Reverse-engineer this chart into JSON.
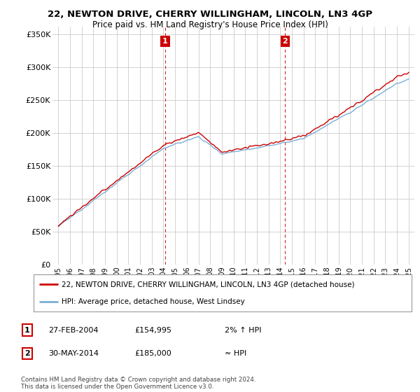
{
  "title_line1": "22, NEWTON DRIVE, CHERRY WILLINGHAM, LINCOLN, LN3 4GP",
  "title_line2": "Price paid vs. HM Land Registry's House Price Index (HPI)",
  "ylabel_ticks": [
    "£0",
    "£50K",
    "£100K",
    "£150K",
    "£200K",
    "£250K",
    "£300K",
    "£350K"
  ],
  "ytick_values": [
    0,
    50000,
    100000,
    150000,
    200000,
    250000,
    300000,
    350000
  ],
  "ylim": [
    0,
    362000
  ],
  "xlim_start": 1994.5,
  "xlim_end": 2025.5,
  "marker1_x": 2004.15,
  "marker1_y": 154995,
  "marker1_label": "1",
  "marker2_x": 2014.42,
  "marker2_y": 185000,
  "marker2_label": "2",
  "legend_line1": "22, NEWTON DRIVE, CHERRY WILLINGHAM, LINCOLN, LN3 4GP (detached house)",
  "legend_line2": "HPI: Average price, detached house, West Lindsey",
  "table_row1": [
    "1",
    "27-FEB-2004",
    "£154,995",
    "2% ↑ HPI"
  ],
  "table_row2": [
    "2",
    "30-MAY-2014",
    "£185,000",
    "≈ HPI"
  ],
  "footer": "Contains HM Land Registry data © Crown copyright and database right 2024.\nThis data is licensed under the Open Government Licence v3.0.",
  "line_color_red": "#cc0000",
  "line_color_blue": "#7bafd4",
  "bg_color": "#ffffff",
  "grid_color": "#cccccc",
  "marker_box_color": "#cc0000",
  "xtick_years": [
    1995,
    1996,
    1997,
    1998,
    1999,
    2000,
    2001,
    2002,
    2003,
    2004,
    2005,
    2006,
    2007,
    2008,
    2009,
    2010,
    2011,
    2012,
    2013,
    2014,
    2015,
    2016,
    2017,
    2018,
    2019,
    2020,
    2021,
    2022,
    2023,
    2024,
    2025
  ]
}
